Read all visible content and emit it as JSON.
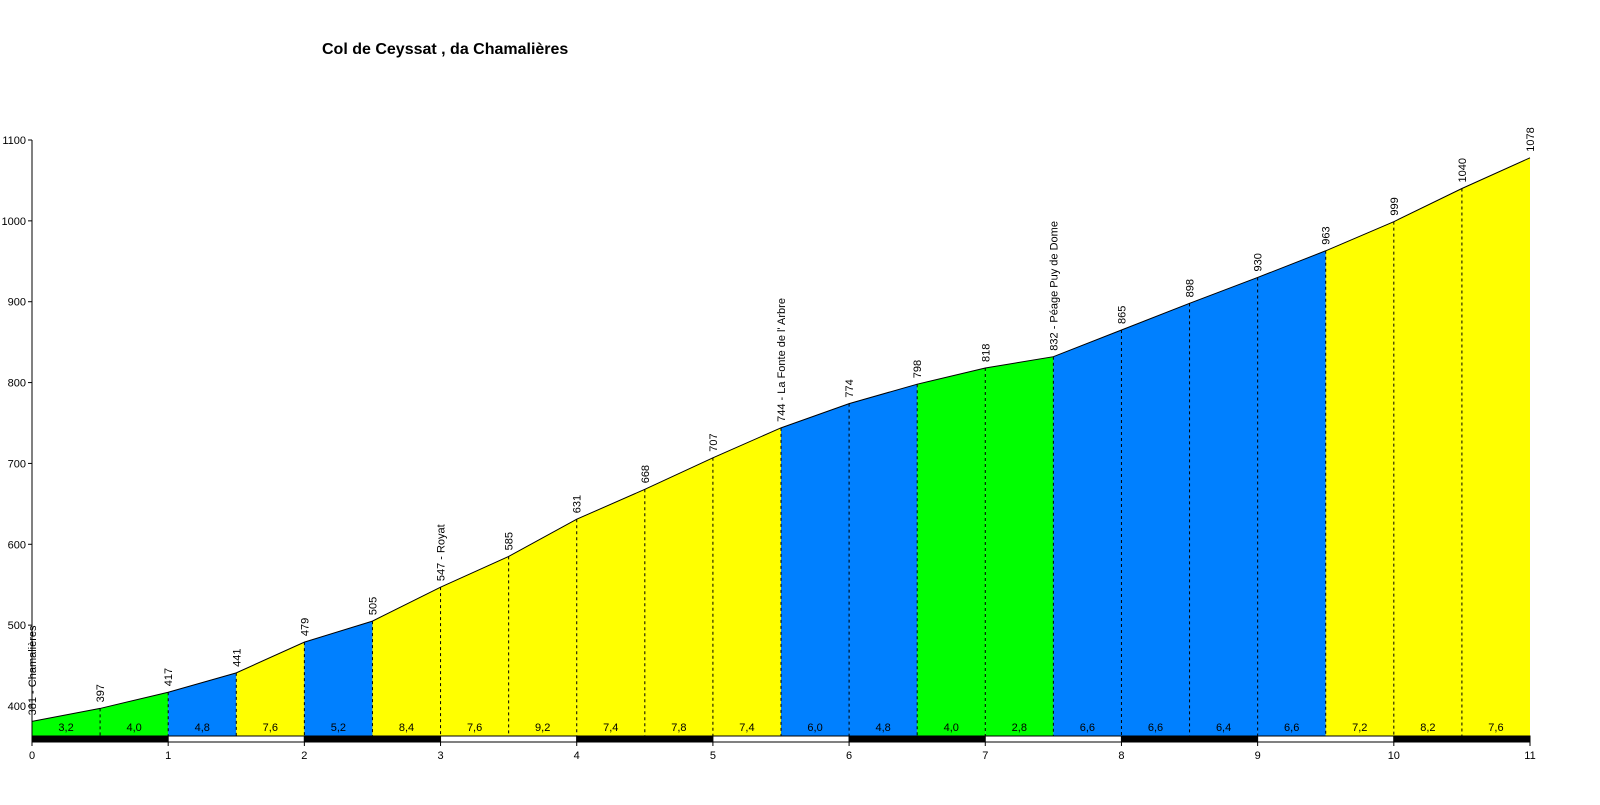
{
  "chart_data": {
    "type": "area",
    "title": "Col de Ceyssat , da Chamalières",
    "xlabel": "",
    "ylabel": "",
    "xlim": [
      0,
      11
    ],
    "ylim": [
      360,
      1100
    ],
    "x_ticks": [
      "0",
      "1",
      "2",
      "3",
      "4",
      "5",
      "6",
      "7",
      "8",
      "9",
      "10",
      "11"
    ],
    "y_ticks": [
      "400",
      "500",
      "600",
      "700",
      "800",
      "900",
      "1000",
      "1100"
    ],
    "points": [
      {
        "km": 0,
        "elevation": 381,
        "label": "381 - Chamalières"
      },
      {
        "km": 0.5,
        "elevation": 397,
        "label": "397"
      },
      {
        "km": 1,
        "elevation": 417,
        "label": "417"
      },
      {
        "km": 1.5,
        "elevation": 441,
        "label": "441"
      },
      {
        "km": 2,
        "elevation": 479,
        "label": "479"
      },
      {
        "km": 2.5,
        "elevation": 505,
        "label": "505"
      },
      {
        "km": 3,
        "elevation": 547,
        "label": "547 - Royat"
      },
      {
        "km": 3.5,
        "elevation": 585,
        "label": "585"
      },
      {
        "km": 4,
        "elevation": 631,
        "label": "631"
      },
      {
        "km": 4.5,
        "elevation": 668,
        "label": "668"
      },
      {
        "km": 5,
        "elevation": 707,
        "label": "707"
      },
      {
        "km": 5.5,
        "elevation": 744,
        "label": "744 - La Fonte de l' Arbre"
      },
      {
        "km": 6,
        "elevation": 774,
        "label": "774"
      },
      {
        "km": 6.5,
        "elevation": 798,
        "label": "798"
      },
      {
        "km": 7,
        "elevation": 818,
        "label": "818"
      },
      {
        "km": 7.5,
        "elevation": 832,
        "label": "832 - Péage Puy de Dome"
      },
      {
        "km": 8,
        "elevation": 865,
        "label": "865"
      },
      {
        "km": 8.5,
        "elevation": 898,
        "label": "898"
      },
      {
        "km": 9,
        "elevation": 930,
        "label": "930"
      },
      {
        "km": 9.5,
        "elevation": 963,
        "label": "963"
      },
      {
        "km": 10,
        "elevation": 999,
        "label": "999"
      },
      {
        "km": 10.5,
        "elevation": 1040,
        "label": "1040"
      },
      {
        "km": 11,
        "elevation": 1078,
        "label": "1078"
      }
    ],
    "segments": [
      {
        "gradient": "3,2",
        "color": "#00ff00"
      },
      {
        "gradient": "4,0",
        "color": "#00ff00"
      },
      {
        "gradient": "4,8",
        "color": "#0080ff"
      },
      {
        "gradient": "7,6",
        "color": "#ffff00"
      },
      {
        "gradient": "5,2",
        "color": "#0080ff"
      },
      {
        "gradient": "8,4",
        "color": "#ffff00"
      },
      {
        "gradient": "7,6",
        "color": "#ffff00"
      },
      {
        "gradient": "9,2",
        "color": "#ffff00"
      },
      {
        "gradient": "7,4",
        "color": "#ffff00"
      },
      {
        "gradient": "7,8",
        "color": "#ffff00"
      },
      {
        "gradient": "7,4",
        "color": "#ffff00"
      },
      {
        "gradient": "6,0",
        "color": "#0080ff"
      },
      {
        "gradient": "4,8",
        "color": "#0080ff"
      },
      {
        "gradient": "4,0",
        "color": "#00ff00"
      },
      {
        "gradient": "2,8",
        "color": "#00ff00"
      },
      {
        "gradient": "6,6",
        "color": "#0080ff"
      },
      {
        "gradient": "6,6",
        "color": "#0080ff"
      },
      {
        "gradient": "6,4",
        "color": "#0080ff"
      },
      {
        "gradient": "6,6",
        "color": "#0080ff"
      },
      {
        "gradient": "7,2",
        "color": "#ffff00"
      },
      {
        "gradient": "8,2",
        "color": "#ffff00"
      },
      {
        "gradient": "7,6",
        "color": "#ffff00"
      }
    ],
    "grid": false,
    "legend": "none"
  }
}
